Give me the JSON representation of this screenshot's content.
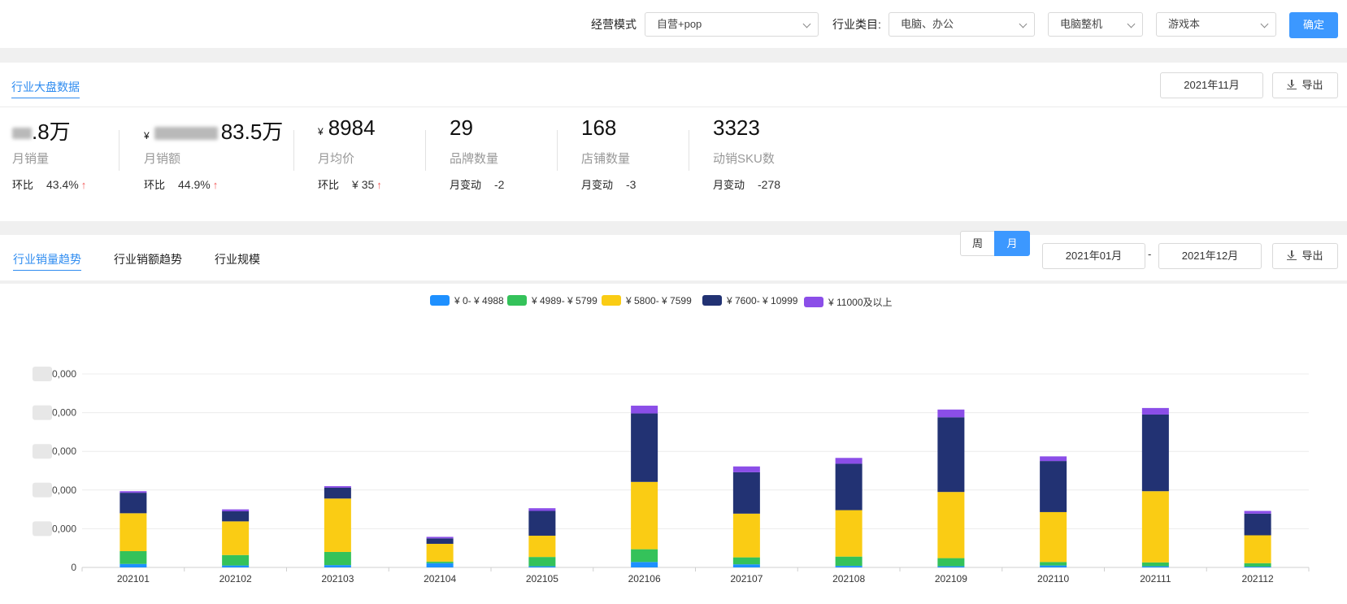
{
  "filters": {
    "mode_label": "经营模式",
    "mode_value": "自营+pop",
    "category_label": "行业类目:",
    "category_value": "电脑、办公",
    "subcategory_value": "电脑整机",
    "leaf_value": "游戏本",
    "confirm_label": "确定"
  },
  "overview": {
    "tab_label": "行业大盘数据",
    "month": "2021年11月",
    "export_label": "导出",
    "kpis": [
      {
        "value": ".8万",
        "label": "月销量",
        "delta_label": "环比",
        "delta_value": "43.4%",
        "arrow": "↑"
      },
      {
        "currency": "¥",
        "value": "83.5万",
        "label": "月销额",
        "delta_label": "环比",
        "delta_value": "44.9%",
        "arrow": "↑"
      },
      {
        "currency": "¥",
        "value": "8984",
        "label": "月均价",
        "delta_label": "环比",
        "delta_value": "¥ 35",
        "arrow": "↑"
      },
      {
        "value": "29",
        "label": "品牌数量",
        "delta_label": "月变动",
        "delta_value": "-2"
      },
      {
        "value": "168",
        "label": "店铺数量",
        "delta_label": "月变动",
        "delta_value": "-3"
      },
      {
        "value": "3323",
        "label": "动销SKU数",
        "delta_label": "月变动",
        "delta_value": "-278"
      }
    ]
  },
  "trend": {
    "tabs": [
      "行业销量趋势",
      "行业销额趋势",
      "行业规模"
    ],
    "period_week": "周",
    "period_month": "月",
    "range_start": "2021年01月",
    "range_sep": "-",
    "range_end": "2021年12月",
    "export_label": "导出"
  },
  "chart_data": {
    "type": "bar",
    "stacked": true,
    "categories": [
      "202101",
      "202102",
      "202103",
      "202104",
      "202105",
      "202106",
      "202107",
      "202108",
      "202109",
      "202110",
      "202111",
      "202112"
    ],
    "y_tick_labels": [
      "0",
      "0,000",
      "0,000",
      "0,000",
      "0,000",
      "0,000"
    ],
    "y_tick_label_partially_obscured": true,
    "ylim": [
      0,
      5
    ],
    "y_unit": "gridline intervals (tick numbers obscured)",
    "grid": true,
    "legend_position": "top-center",
    "series": [
      {
        "name": "¥ 0- ¥ 4988",
        "color": "#1e90ff",
        "values": [
          0.09,
          0.05,
          0.06,
          0.11,
          0.03,
          0.14,
          0.08,
          0.04,
          0.03,
          0.05,
          0.03,
          0.02
        ]
      },
      {
        "name": "¥ 4989- ¥ 5799",
        "color": "#34c25a",
        "values": [
          0.33,
          0.27,
          0.34,
          0.04,
          0.24,
          0.33,
          0.18,
          0.24,
          0.21,
          0.09,
          0.1,
          0.09
        ]
      },
      {
        "name": "¥ 5800- ¥ 7599",
        "color": "#facc14",
        "values": [
          0.98,
          0.87,
          1.38,
          0.46,
          0.55,
          1.74,
          1.13,
          1.2,
          1.71,
          1.29,
          1.84,
          0.72
        ]
      },
      {
        "name": "¥ 7600- ¥ 10999",
        "color": "#223273",
        "values": [
          0.53,
          0.26,
          0.28,
          0.14,
          0.64,
          1.77,
          1.07,
          1.2,
          1.93,
          1.32,
          1.98,
          0.56
        ]
      },
      {
        "name": "¥ 11000及以上",
        "color": "#8b4ee8",
        "values": [
          0.04,
          0.05,
          0.04,
          0.04,
          0.07,
          0.2,
          0.15,
          0.15,
          0.2,
          0.12,
          0.17,
          0.07
        ]
      }
    ]
  }
}
